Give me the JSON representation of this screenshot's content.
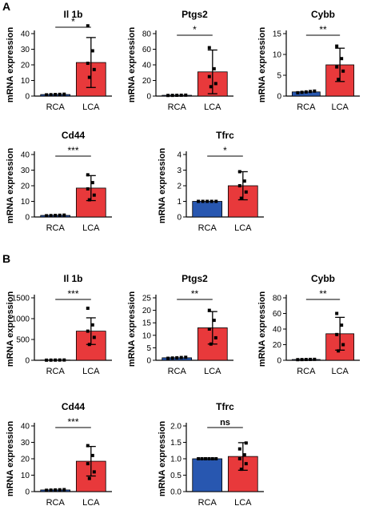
{
  "panels": [
    {
      "letter": "A"
    },
    {
      "letter": "B"
    }
  ],
  "colors": {
    "rca_fill": "#2857b0",
    "lca_fill": "#e8393b",
    "axis": "#000000",
    "dot": "#000000"
  },
  "chart_data": [
    {
      "panel": "A",
      "type": "bar",
      "title": "Il 1b",
      "xlabel": "",
      "ylabel": "mRNA expression",
      "categories": [
        "RCA",
        "LCA"
      ],
      "ylim": [
        0,
        40
      ],
      "yticks": [
        0,
        10,
        20,
        30,
        40
      ],
      "values": [
        1,
        21.5
      ],
      "error": [
        0,
        16
      ],
      "points": [
        [
          0.8,
          0.9,
          1.0,
          1.1,
          1.2
        ],
        [
          12,
          17,
          21,
          29,
          45
        ]
      ],
      "significance": "*"
    },
    {
      "panel": "A",
      "type": "bar",
      "title": "Ptgs2",
      "xlabel": "",
      "ylabel": "mRNA expression",
      "categories": [
        "RCA",
        "LCA"
      ],
      "ylim": [
        0,
        80
      ],
      "yticks": [
        0,
        20,
        40,
        60,
        80
      ],
      "values": [
        1,
        31
      ],
      "error": [
        0,
        28
      ],
      "points": [
        [
          0.8,
          0.9,
          1.0,
          1.1,
          1.2
        ],
        [
          12,
          16,
          25,
          35,
          62
        ]
      ],
      "significance": "*"
    },
    {
      "panel": "A",
      "type": "bar",
      "title": "Cybb",
      "xlabel": "",
      "ylabel": "mRNA expression",
      "categories": [
        "RCA",
        "LCA"
      ],
      "ylim": [
        0,
        15
      ],
      "yticks": [
        0,
        5,
        10,
        15
      ],
      "values": [
        1,
        7.5
      ],
      "error": [
        0,
        4
      ],
      "points": [
        [
          0.8,
          0.9,
          1.0,
          1.1,
          1.2
        ],
        [
          4,
          6,
          7,
          9,
          12
        ]
      ],
      "significance": "**"
    },
    {
      "panel": "A",
      "type": "bar",
      "title": "Cd44",
      "xlabel": "",
      "ylabel": "mRNA expression",
      "categories": [
        "RCA",
        "LCA"
      ],
      "ylim": [
        0,
        40
      ],
      "yticks": [
        0,
        10,
        20,
        30,
        40
      ],
      "values": [
        1,
        18.5
      ],
      "error": [
        0,
        8
      ],
      "points": [
        [
          0.8,
          0.9,
          1.0,
          1.1,
          1.2
        ],
        [
          11,
          14,
          18,
          22,
          27
        ]
      ],
      "significance": "***"
    },
    {
      "panel": "A",
      "type": "bar",
      "title": "Tfrc",
      "xlabel": "",
      "ylabel": "mRNA expression",
      "categories": [
        "RCA",
        "LCA"
      ],
      "ylim": [
        0,
        4
      ],
      "yticks": [
        0,
        1,
        2,
        3,
        4
      ],
      "values": [
        1,
        2
      ],
      "error": [
        0,
        0.9
      ],
      "points": [
        [
          1,
          1,
          1,
          1,
          1
        ],
        [
          1.2,
          1.6,
          2.0,
          2.3,
          2.9
        ]
      ],
      "significance": "*"
    },
    {
      "panel": "B",
      "type": "bar",
      "title": "Il 1b",
      "xlabel": "",
      "ylabel": "mRNA expression",
      "categories": [
        "RCA",
        "LCA"
      ],
      "ylim": [
        0,
        1500
      ],
      "yticks": [
        0,
        500,
        1000,
        1500
      ],
      "values": [
        5,
        700
      ],
      "error": [
        0,
        320
      ],
      "points": [
        [
          3,
          4,
          5,
          6,
          7
        ],
        [
          380,
          550,
          700,
          850,
          1250
        ]
      ],
      "significance": "***"
    },
    {
      "panel": "B",
      "type": "bar",
      "title": "Ptgs2",
      "xlabel": "",
      "ylabel": "mRNA expression",
      "categories": [
        "RCA",
        "LCA"
      ],
      "ylim": [
        0,
        25
      ],
      "yticks": [
        0,
        5,
        10,
        15,
        20,
        25
      ],
      "values": [
        1,
        13
      ],
      "error": [
        0,
        6.5
      ],
      "points": [
        [
          0.8,
          0.9,
          1.0,
          1.1,
          1.2
        ],
        [
          6.5,
          9,
          12.5,
          16,
          20
        ]
      ],
      "significance": "**"
    },
    {
      "panel": "B",
      "type": "bar",
      "title": "Cybb",
      "xlabel": "",
      "ylabel": "mRNA expression",
      "categories": [
        "RCA",
        "LCA"
      ],
      "ylim": [
        0,
        80
      ],
      "yticks": [
        0,
        20,
        40,
        60,
        80
      ],
      "values": [
        1,
        34
      ],
      "error": [
        0,
        21
      ],
      "points": [
        [
          0.8,
          0.9,
          1.0,
          1.1,
          1.2
        ],
        [
          12,
          20,
          33,
          45,
          60
        ]
      ],
      "significance": "**"
    },
    {
      "panel": "B",
      "type": "bar",
      "title": "Cd44",
      "xlabel": "",
      "ylabel": "mRNA expression",
      "categories": [
        "RCA",
        "LCA"
      ],
      "ylim": [
        0,
        40
      ],
      "yticks": [
        0,
        10,
        20,
        30,
        40
      ],
      "values": [
        1,
        18.5
      ],
      "error": [
        0,
        9
      ],
      "points": [
        [
          0.8,
          0.9,
          1.0,
          1.1,
          1.2
        ],
        [
          8,
          12,
          17,
          22,
          28
        ]
      ],
      "significance": "***"
    },
    {
      "panel": "B",
      "type": "bar",
      "title": "Tfrc",
      "xlabel": "",
      "ylabel": "mRNA expression",
      "categories": [
        "RCA",
        "LCA"
      ],
      "ylim": [
        0,
        2.0
      ],
      "yticks": [
        0.0,
        0.5,
        1.0,
        1.5,
        2.0
      ],
      "ytick_labels": [
        "0.0",
        "0.5",
        "1.0",
        "1.5",
        "2.0"
      ],
      "values": [
        1,
        1.07
      ],
      "error": [
        0,
        0.42
      ],
      "points": [
        [
          1,
          1,
          1,
          1,
          1,
          1
        ],
        [
          0.68,
          0.85,
          1.0,
          1.12,
          1.3,
          1.48
        ]
      ],
      "significance": "ns"
    }
  ]
}
